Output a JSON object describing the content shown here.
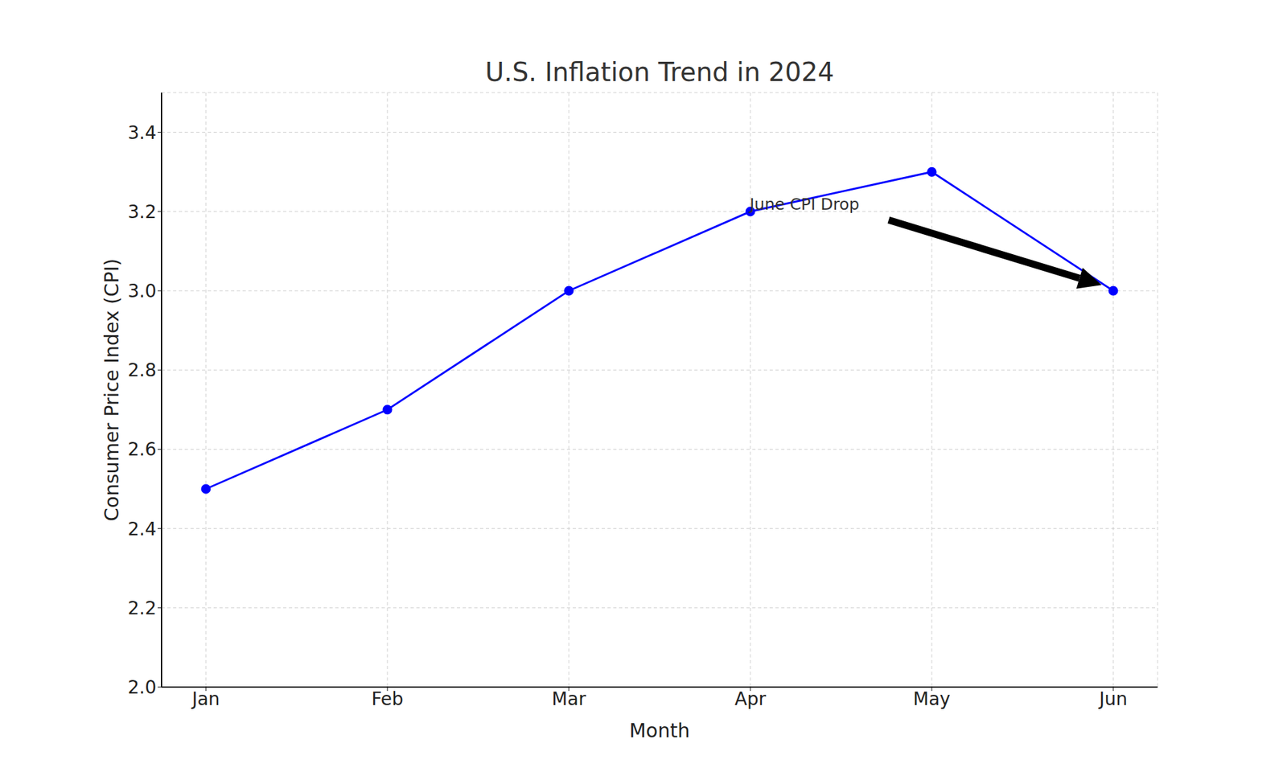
{
  "chart_data": {
    "type": "line",
    "title": "U.S. Inflation Trend in 2024",
    "x_label": "Month",
    "y_label": "Consumer Price Index (CPI)",
    "categories": [
      "Jan",
      "Feb",
      "Mar",
      "Apr",
      "May",
      "Jun"
    ],
    "values": [
      2.5,
      2.7,
      3.0,
      3.2,
      3.3,
      3.0
    ],
    "color": "#0000ff",
    "marker": "o",
    "line_style": "solid",
    "ylim": [
      2.0,
      3.5
    ],
    "yticks": [
      {
        "value": 2.0,
        "label": "2.0"
      },
      2.2,
      2.4,
      2.6,
      2.8,
      {
        "value": 3.0,
        "label": "3.0"
      },
      3.2,
      3.4
    ],
    "grid": true,
    "annotations": [
      {
        "text": "June CPI Drop",
        "category": "Jun"
      }
    ]
  }
}
